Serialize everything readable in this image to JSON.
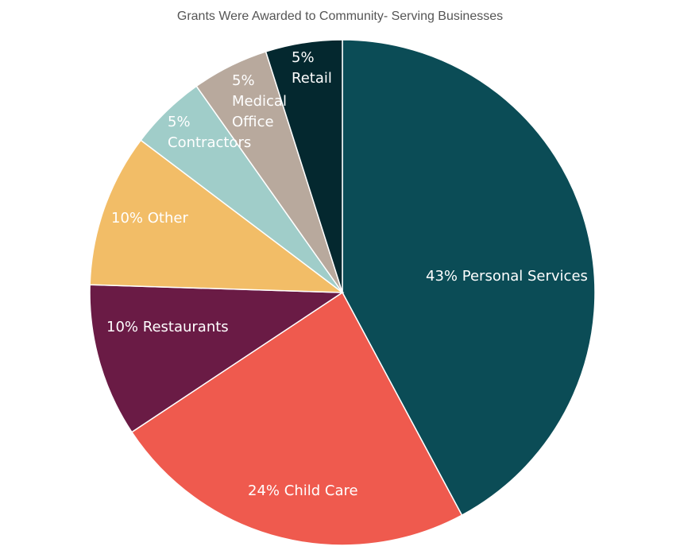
{
  "chart_data": {
    "type": "pie",
    "title": "Grants Were Awarded to Community- Serving Businesses",
    "categories": [
      "Personal Services",
      "Child Care",
      "Restaurants",
      "Other",
      "Contractors",
      "Medical Office",
      "Retail"
    ],
    "values": [
      43,
      24,
      10,
      10,
      5,
      5,
      5
    ],
    "value_labels": [
      "43%",
      "24%",
      "10%",
      "10%",
      "5%",
      "5%",
      "5%"
    ],
    "colors": [
      "#0b4c56",
      "#ef5a4e",
      "#6a1b45",
      "#f2bd67",
      "#a0cdc9",
      "#b8a99d",
      "#04282f"
    ]
  }
}
